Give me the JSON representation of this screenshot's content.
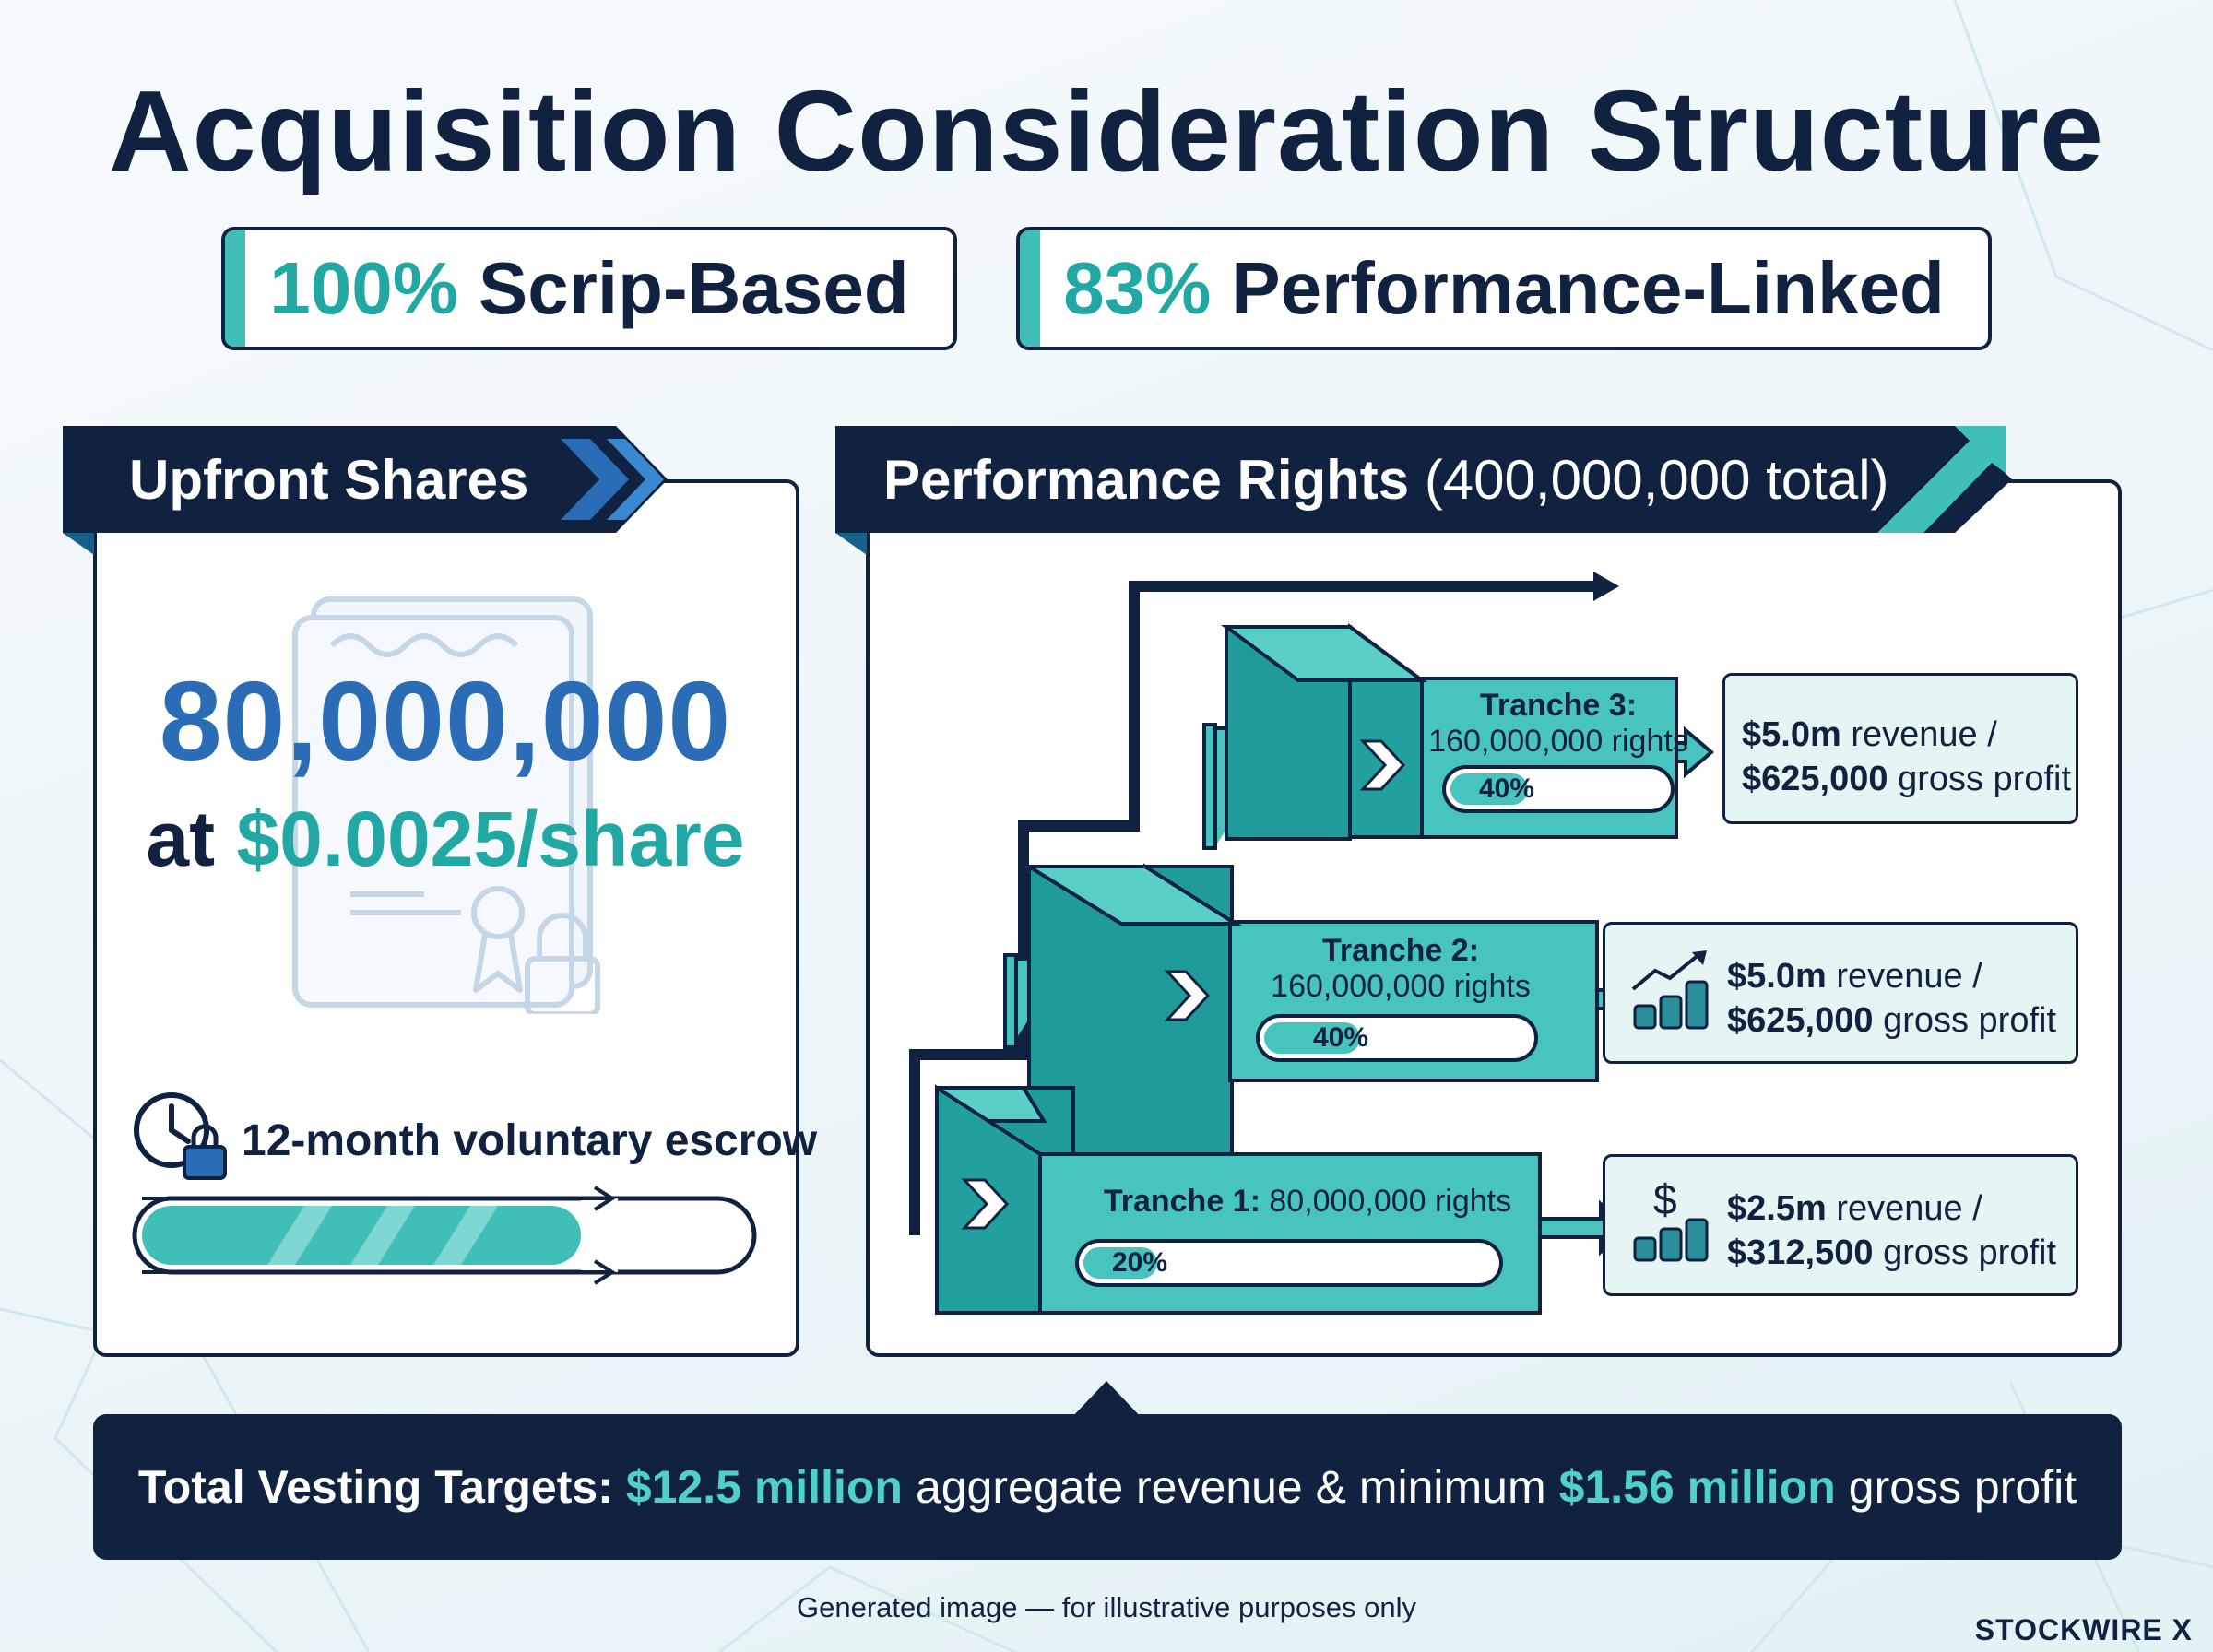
{
  "title": "Acquisition Consideration Structure",
  "badges": [
    {
      "pct": "100%",
      "label": "Scrip-Based"
    },
    {
      "pct": "83%",
      "label": "Performance-Linked"
    }
  ],
  "upfront": {
    "heading": "Upfront Shares",
    "shares": "80,000,000",
    "price_prefix": "at",
    "price": "$0.0025/share",
    "escrow_label": "12-month voluntary escrow"
  },
  "performance": {
    "heading": "Performance Rights",
    "heading_suffix": "(400,000,000 total)",
    "tranches": [
      {
        "title": "Tranche 1:",
        "rights": "80,000,000 rights",
        "percent_label": "20%",
        "percent": 20,
        "target_revenue": "$2.5m",
        "revenue_word": "revenue /",
        "target_profit": "$312,500",
        "profit_word": "gross profit",
        "icon": "dollar-coins-icon"
      },
      {
        "title": "Tranche 2:",
        "rights": "160,000,000 rights",
        "percent_label": "40%",
        "percent": 40,
        "target_revenue": "$5.0m",
        "revenue_word": "revenue /",
        "target_profit": "$625,000",
        "profit_word": "gross profit",
        "icon": "growth-coins-icon"
      },
      {
        "title": "Tranche 3:",
        "rights": "160,000,000 rights",
        "percent_label": "40%",
        "percent": 40,
        "target_revenue": "$5.0m",
        "revenue_word": "revenue /",
        "target_profit": "$625,000",
        "profit_word": "gross profit",
        "icon": ""
      }
    ]
  },
  "summary": {
    "lead": "Total Vesting Targets:",
    "revenue": "$12.5 million",
    "mid": "aggregate revenue & minimum",
    "profit": "$1.56 million",
    "tail": "gross profit"
  },
  "notice": "Generated image — for illustrative purposes only",
  "brand": "STOCKWIRE X",
  "colors": {
    "navy": "#10223f",
    "teal": "#22a8a4",
    "blue": "#2a6cb5",
    "cube": "#46c4bd"
  }
}
